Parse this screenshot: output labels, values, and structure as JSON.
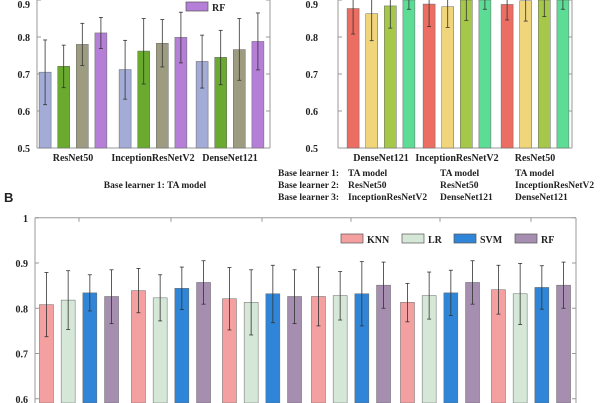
{
  "panel_label_b": "B",
  "chart_data": [
    {
      "type": "bar",
      "panel": "A-left",
      "categories": [
        "ResNet50",
        "InceptionResNetV2",
        "DenseNet121"
      ],
      "ylim": [
        0.5,
        1.0
      ],
      "yticks": [
        "0.5",
        "0.6",
        "0.7",
        "0.8",
        "0.9"
      ],
      "grid": false,
      "legend_placement": "top-right",
      "legend_visible": [
        "RF"
      ],
      "colors": [
        "#a3acd6",
        "#6aaa2e",
        "#9e9c80",
        "#b57fd8"
      ],
      "series": [
        {
          "values": [
            0.705,
            0.712,
            0.734
          ],
          "err_low": [
            0.617,
            0.632,
            0.662
          ],
          "err_high": [
            0.792,
            0.791,
            0.805
          ]
        },
        {
          "values": [
            0.721,
            0.762,
            0.745
          ],
          "err_low": [
            0.663,
            0.673,
            0.671
          ],
          "err_high": [
            0.778,
            0.85,
            0.818
          ]
        },
        {
          "values": [
            0.78,
            0.783,
            0.766
          ],
          "err_low": [
            0.723,
            0.719,
            0.683
          ],
          "err_high": [
            0.837,
            0.847,
            0.85
          ]
        },
        {
          "name": "RF",
          "values": [
            0.811,
            0.799,
            0.788
          ],
          "err_low": [
            0.769,
            0.73,
            0.711
          ],
          "err_high": [
            0.853,
            0.867,
            0.865
          ]
        }
      ],
      "caption": "Base learner 1: TA model"
    },
    {
      "type": "bar",
      "panel": "A-right",
      "categories": [
        "DenseNet121",
        "InceptionResNetV2",
        "ResNet50"
      ],
      "ylim": [
        0.5,
        1.0
      ],
      "yticks": [
        "0.5",
        "0.6",
        "0.7",
        "0.8",
        "0.9"
      ],
      "grid": false,
      "colors": [
        "#ec6e63",
        "#f0d57a",
        "#a5c84a",
        "#5ddc95"
      ],
      "series": [
        {
          "values": [
            0.877,
            0.889,
            0.888
          ],
          "err_low": [
            0.808,
            0.828,
            0.846
          ],
          "err_high": [
            0.946,
            0.95,
            0.93
          ]
        },
        {
          "values": [
            0.863,
            0.882,
            0.898
          ],
          "err_low": [
            0.79,
            0.826,
            0.843
          ],
          "err_high": [
            0.936,
            0.938,
            0.953
          ]
        },
        {
          "values": [
            0.884,
            0.9,
            0.905
          ],
          "err_low": [
            0.824,
            0.845,
            0.855
          ],
          "err_high": [
            0.944,
            0.955,
            0.955
          ]
        },
        {
          "values": [
            0.91,
            0.91,
            0.91
          ],
          "err_low": [
            0.875,
            0.875,
            0.875
          ],
          "err_high": [
            0.945,
            0.945,
            0.945
          ]
        }
      ],
      "learner_labels": [
        "Base learner 1:",
        "Base learner 2:",
        "Base learner 3:"
      ],
      "learner_columns": [
        [
          "TA model",
          "ResNet50",
          "InceptionResNetV2"
        ],
        [
          "TA model",
          "ResNet50",
          "DenseNet121"
        ],
        [
          "TA model",
          "InceptionResNetV2",
          "DenseNet121"
        ]
      ]
    },
    {
      "type": "bar",
      "panel": "B",
      "categories": [
        "",
        "",
        "",
        "",
        "",
        ""
      ],
      "ylim": [
        0.5,
        1.0
      ],
      "yticks": [
        "0.6",
        "0.7",
        "0.8",
        "0.9",
        "1"
      ],
      "grid": false,
      "legend_placement": "top-right",
      "colors": [
        "#f4a0a0",
        "#d5e8d8",
        "#2f86d8",
        "#a58eb0"
      ],
      "series": [
        {
          "name": "KNN",
          "values": [
            0.808,
            0.839,
            0.821,
            0.826,
            0.813,
            0.841
          ],
          "err_low": [
            0.737,
            0.79,
            0.752,
            0.761,
            0.77,
            0.787
          ],
          "err_high": [
            0.879,
            0.888,
            0.89,
            0.891,
            0.855,
            0.895
          ]
        },
        {
          "name": "LR",
          "values": [
            0.818,
            0.823,
            0.813,
            0.828,
            0.828,
            0.832
          ],
          "err_low": [
            0.753,
            0.772,
            0.741,
            0.774,
            0.776,
            0.764
          ],
          "err_high": [
            0.883,
            0.874,
            0.885,
            0.881,
            0.88,
            0.899
          ]
        },
        {
          "name": "SVM",
          "values": [
            0.834,
            0.844,
            0.832,
            0.832,
            0.834,
            0.846
          ],
          "err_low": [
            0.794,
            0.797,
            0.768,
            0.761,
            0.784,
            0.798
          ],
          "err_high": [
            0.874,
            0.891,
            0.895,
            0.903,
            0.884,
            0.894
          ]
        },
        {
          "name": "RF",
          "values": [
            0.826,
            0.857,
            0.826,
            0.851,
            0.857,
            0.851
          ],
          "err_low": [
            0.766,
            0.809,
            0.766,
            0.8,
            0.809,
            0.8
          ],
          "err_high": [
            0.885,
            0.905,
            0.885,
            0.902,
            0.905,
            0.902
          ]
        }
      ]
    }
  ]
}
